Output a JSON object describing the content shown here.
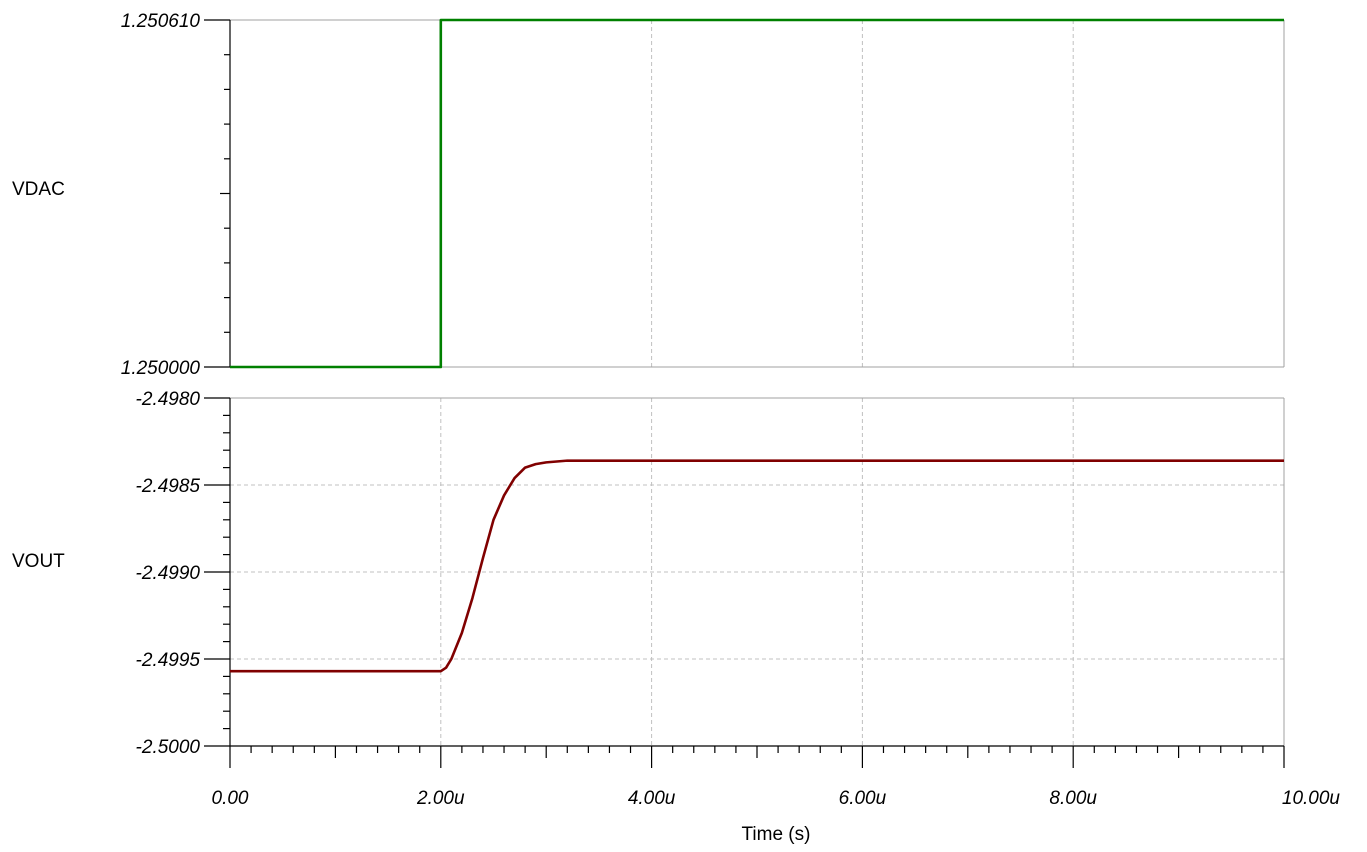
{
  "chart_data": [
    {
      "type": "line",
      "panel": "top",
      "ylabel": "VDAC",
      "ylim": [
        1.25,
        1.25061
      ],
      "ytick_labels": [
        "1.250610",
        "1.250000"
      ],
      "grid": true,
      "series": [
        {
          "name": "VDAC",
          "color": "#008000",
          "points": [
            [
              0.0,
              1.25
            ],
            [
              2.0,
              1.25
            ],
            [
              2.0,
              1.25061
            ],
            [
              10.0,
              1.25061
            ]
          ]
        }
      ]
    },
    {
      "type": "line",
      "panel": "bottom",
      "xlabel": "Time (s)",
      "ylabel": "VOUT",
      "xlim": [
        0,
        10
      ],
      "ylim": [
        -2.5,
        -2.498
      ],
      "x_ticks": [
        0,
        2,
        4,
        6,
        8,
        10
      ],
      "x_tick_labels": [
        "0.00",
        "2.00u",
        "4.00u",
        "6.00u",
        "8.00u",
        "10.00u"
      ],
      "y_ticks": [
        -2.498,
        -2.4985,
        -2.499,
        -2.4995,
        -2.5
      ],
      "y_tick_labels": [
        "-2.4980",
        "-2.4985",
        "-2.4990",
        "-2.4995",
        "-2.5000"
      ],
      "grid": true,
      "series": [
        {
          "name": "VOUT",
          "color": "#800000",
          "points": [
            [
              0.0,
              -2.49957
            ],
            [
              2.0,
              -2.49957
            ],
            [
              2.05,
              -2.49955
            ],
            [
              2.1,
              -2.4995
            ],
            [
              2.2,
              -2.49935
            ],
            [
              2.3,
              -2.49915
            ],
            [
              2.4,
              -2.49892
            ],
            [
              2.5,
              -2.4987
            ],
            [
              2.6,
              -2.49856
            ],
            [
              2.7,
              -2.49846
            ],
            [
              2.8,
              -2.4984
            ],
            [
              2.9,
              -2.49838
            ],
            [
              3.0,
              -2.49837
            ],
            [
              3.2,
              -2.49836
            ],
            [
              10.0,
              -2.49836
            ]
          ]
        }
      ]
    }
  ]
}
